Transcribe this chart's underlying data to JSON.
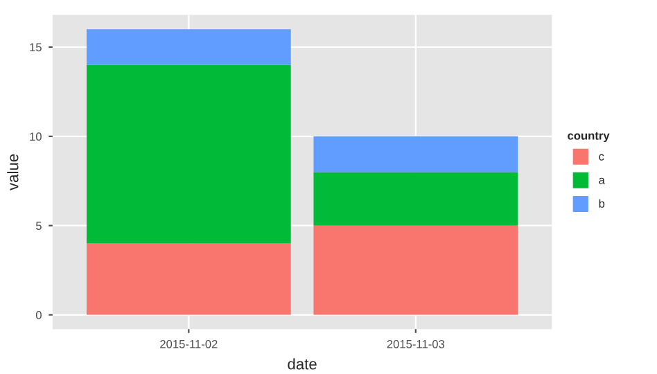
{
  "chart_data": {
    "type": "bar",
    "stacked": true,
    "xlabel": "date",
    "ylabel": "value",
    "legend_title": "country",
    "categories": [
      "2015-11-02",
      "2015-11-03"
    ],
    "series": [
      {
        "name": "c",
        "color": "#f8766d",
        "values": [
          4,
          5
        ]
      },
      {
        "name": "a",
        "color": "#00ba38",
        "values": [
          10,
          3
        ]
      },
      {
        "name": "b",
        "color": "#619cff",
        "values": [
          2,
          2
        ]
      }
    ],
    "ylim": [
      -0.8,
      16.8
    ],
    "yticks": [
      0,
      5,
      10,
      15
    ],
    "grid": true,
    "legend": "right"
  }
}
